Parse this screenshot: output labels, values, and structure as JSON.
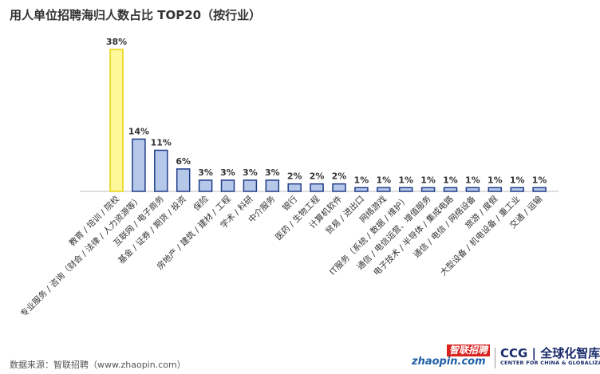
{
  "chart_data": {
    "type": "bar",
    "title": "用人单位招聘海归人数占比 TOP20（按行业）",
    "categories": [
      "教育 / 培训 / 院校",
      "专业服务 / 咨询（财会 / 法律 / 人力资源等）",
      "互联网 / 电子商务",
      "基金 / 证券 / 期货 / 投资",
      "保险",
      "房地产 / 建筑 / 建材 / 工程",
      "学术 / 科研",
      "中介服务",
      "银行",
      "医药 / 生物工程",
      "计算机软件",
      "贸易 / 进出口",
      "网络游戏",
      "IT服务（系统 / 数据 / 维护）",
      "通信 / 电信运营、增值服务",
      "电子技术 / 半导体 / 集成电路",
      "通信 / 电信 / 网络设备",
      "旅游 / 度假",
      "大型设备 / 机电设备 / 重工业",
      "交通 / 运输"
    ],
    "values": [
      38,
      14,
      11,
      6,
      3,
      3,
      3,
      3,
      2,
      2,
      2,
      1,
      1,
      1,
      1,
      1,
      1,
      1,
      1,
      1
    ],
    "value_labels": [
      "38%",
      "14%",
      "11%",
      "6%",
      "3%",
      "3%",
      "3%",
      "3%",
      "2%",
      "2%",
      "2%",
      "1%",
      "1%",
      "1%",
      "1%",
      "1%",
      "1%",
      "1%",
      "1%",
      "1%"
    ],
    "xlabel": "",
    "ylabel": "",
    "ylim": [
      0,
      38
    ],
    "grid": false,
    "legend": "none",
    "colors": {
      "highlight_fill": "#fff89a",
      "highlight_stroke": "#e8d40a",
      "bar_fill": "#b6c8ea",
      "bar_stroke": "#1f3c88",
      "axis": "#bbbbbb",
      "text": "#333333"
    },
    "highlight_index": 0
  },
  "source": "数据来源：智联招聘（www.zhaopin.com）",
  "logos": {
    "zhaopin_top": "智联招聘",
    "zhaopin_bottom": "zhaopin.com",
    "ccg_top": "CCG | 全球化智库",
    "ccg_bottom": "CENTER FOR CHINA & GLOBALIZATION"
  }
}
